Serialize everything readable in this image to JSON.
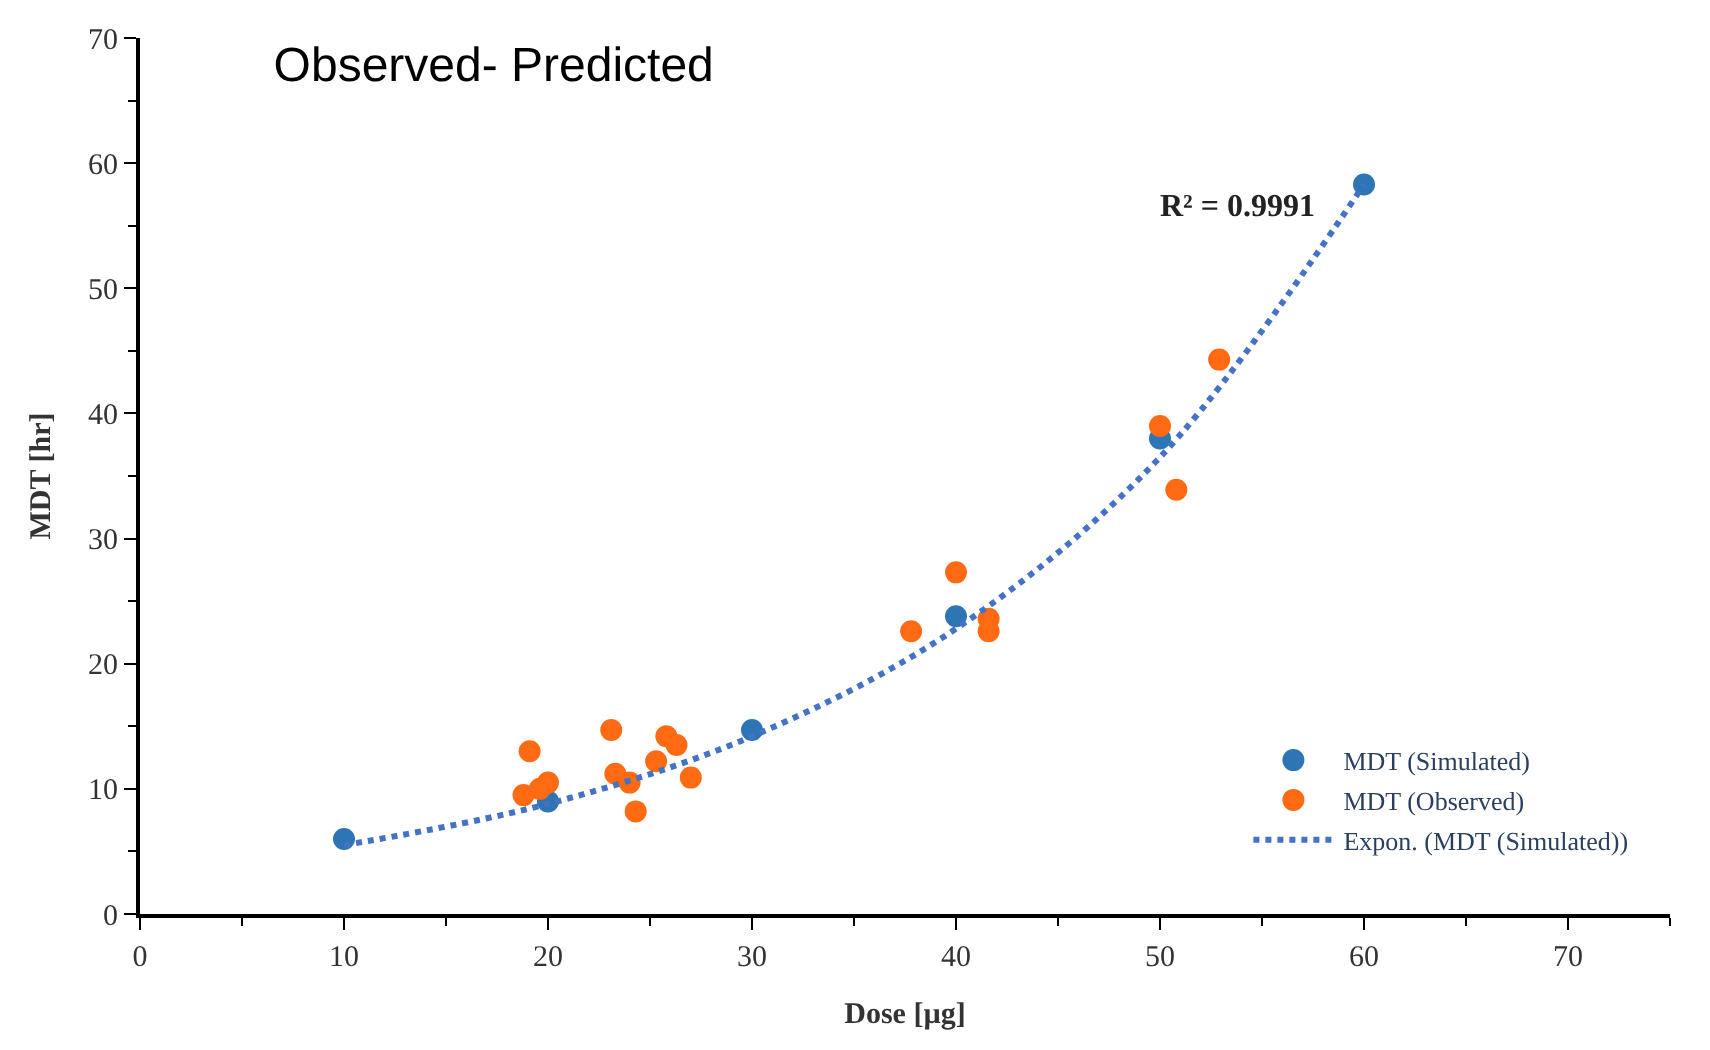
{
  "chart_data": {
    "type": "scatter",
    "title": "Observed- Predicted",
    "xlabel": "Dose [µg]",
    "ylabel": "MDT [hr]",
    "annotations": [
      "R² = 0.9991"
    ],
    "series": [
      {
        "name": "MDT (Simulated)",
        "color": "#2e75b6",
        "x": [
          10,
          20,
          30,
          40,
          50,
          60
        ],
        "values": [
          6,
          9,
          14.7,
          23.8,
          38,
          58.3
        ]
      },
      {
        "name": "MDT (Observed)",
        "color": "#ff6a13",
        "x": [
          18.8,
          19.1,
          19.6,
          20,
          23.1,
          23.3,
          24,
          24.3,
          25.3,
          25.8,
          26.3,
          27,
          37.8,
          40,
          41.6,
          41.6,
          50,
          50.8,
          52.9
        ],
        "values": [
          9.5,
          13,
          10,
          10.5,
          14.7,
          11.2,
          10.5,
          8.2,
          12.2,
          14.2,
          13.5,
          10.9,
          22.6,
          27.3,
          23.6,
          22.6,
          39,
          33.9,
          44.3
        ]
      },
      {
        "name": "Expon. (MDT (Simulated))",
        "type": "line",
        "line_style": "dotted",
        "marker": "none",
        "color": "#4472c4",
        "x": [
          10,
          20,
          30,
          40,
          50,
          60
        ],
        "values": [
          5.5,
          8.8,
          14.2,
          22.8,
          36.5,
          58.3
        ]
      }
    ],
    "marker": "circle",
    "legend": "bottom right",
    "xlim": [
      0,
      75
    ],
    "xticks": [
      0,
      10,
      20,
      30,
      40,
      50,
      60,
      70
    ],
    "ylim": [
      0,
      70
    ],
    "yticks": [
      0,
      10,
      20,
      30,
      40,
      50,
      60,
      70
    ]
  }
}
